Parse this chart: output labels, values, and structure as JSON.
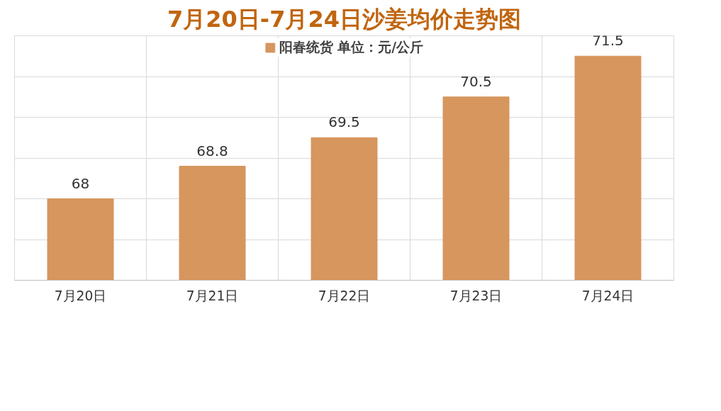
{
  "chart_data": {
    "type": "bar",
    "title": "7月20日-7月24日沙姜均价走势图",
    "categories": [
      "7月20日",
      "7月21日",
      "7月22日",
      "7月23日",
      "7月24日"
    ],
    "series": [
      {
        "name": "阳春统货 单位：元/公斤",
        "color": "#d6965e",
        "values": [
          68,
          68.8,
          69.5,
          70.5,
          71.5
        ]
      }
    ],
    "ylim": [
      66,
      72
    ],
    "yticks": [
      {
        "value": 66,
        "label": null
      },
      {
        "value": 67,
        "label": null
      },
      {
        "value": 68,
        "label": null
      },
      {
        "value": 69,
        "label": null
      },
      {
        "value": 70,
        "label": null
      },
      {
        "value": 71,
        "label": null
      },
      {
        "value": 72,
        "label": null
      }
    ],
    "tick_labels": "x",
    "grid": true,
    "legend": "top",
    "data_labels": true
  }
}
